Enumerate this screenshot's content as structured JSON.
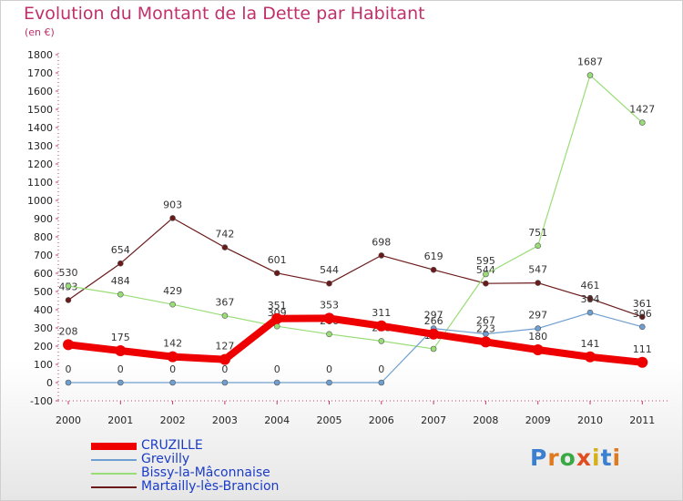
{
  "title": "Evolution du Montant de la Dette par Habitant",
  "subtitle": "(en €)",
  "logo": "Proxiti",
  "chart_data": {
    "type": "line",
    "title": "Evolution du Montant de la Dette par Habitant",
    "ylabel": "(en €)",
    "xlabel": "",
    "x": [
      "2000",
      "2001",
      "2002",
      "2003",
      "2004",
      "2005",
      "2006",
      "2007",
      "2008",
      "2009",
      "2010",
      "2011"
    ],
    "ylim": [
      -100,
      1800
    ],
    "yticks": [
      -100,
      0,
      100,
      200,
      300,
      400,
      500,
      600,
      700,
      800,
      900,
      1000,
      1100,
      1200,
      1300,
      1400,
      1500,
      1600,
      1700,
      1800
    ],
    "grid": false,
    "legend_position": "bottom-left",
    "series": [
      {
        "name": "CRUZILLE",
        "color": "#ee0000",
        "values": [
          208,
          175,
          142,
          127,
          351,
          353,
          311,
          266,
          223,
          180,
          141,
          111
        ]
      },
      {
        "name": "Grevilly",
        "color": "#6e9fd0",
        "values": [
          0,
          0,
          0,
          0,
          0,
          0,
          0,
          297,
          267,
          297,
          384,
          306
        ]
      },
      {
        "name": "Bissy-la-Mâconnaise",
        "color": "#99dd77",
        "values": [
          530,
          484,
          429,
          367,
          309,
          266,
          228,
          185,
          595,
          751,
          1687,
          1427
        ]
      },
      {
        "name": "Martailly-lès-Brancion",
        "color": "#6b1a1a",
        "values": [
          453,
          654,
          903,
          742,
          601,
          544,
          698,
          619,
          544,
          547,
          461,
          361
        ]
      }
    ]
  }
}
